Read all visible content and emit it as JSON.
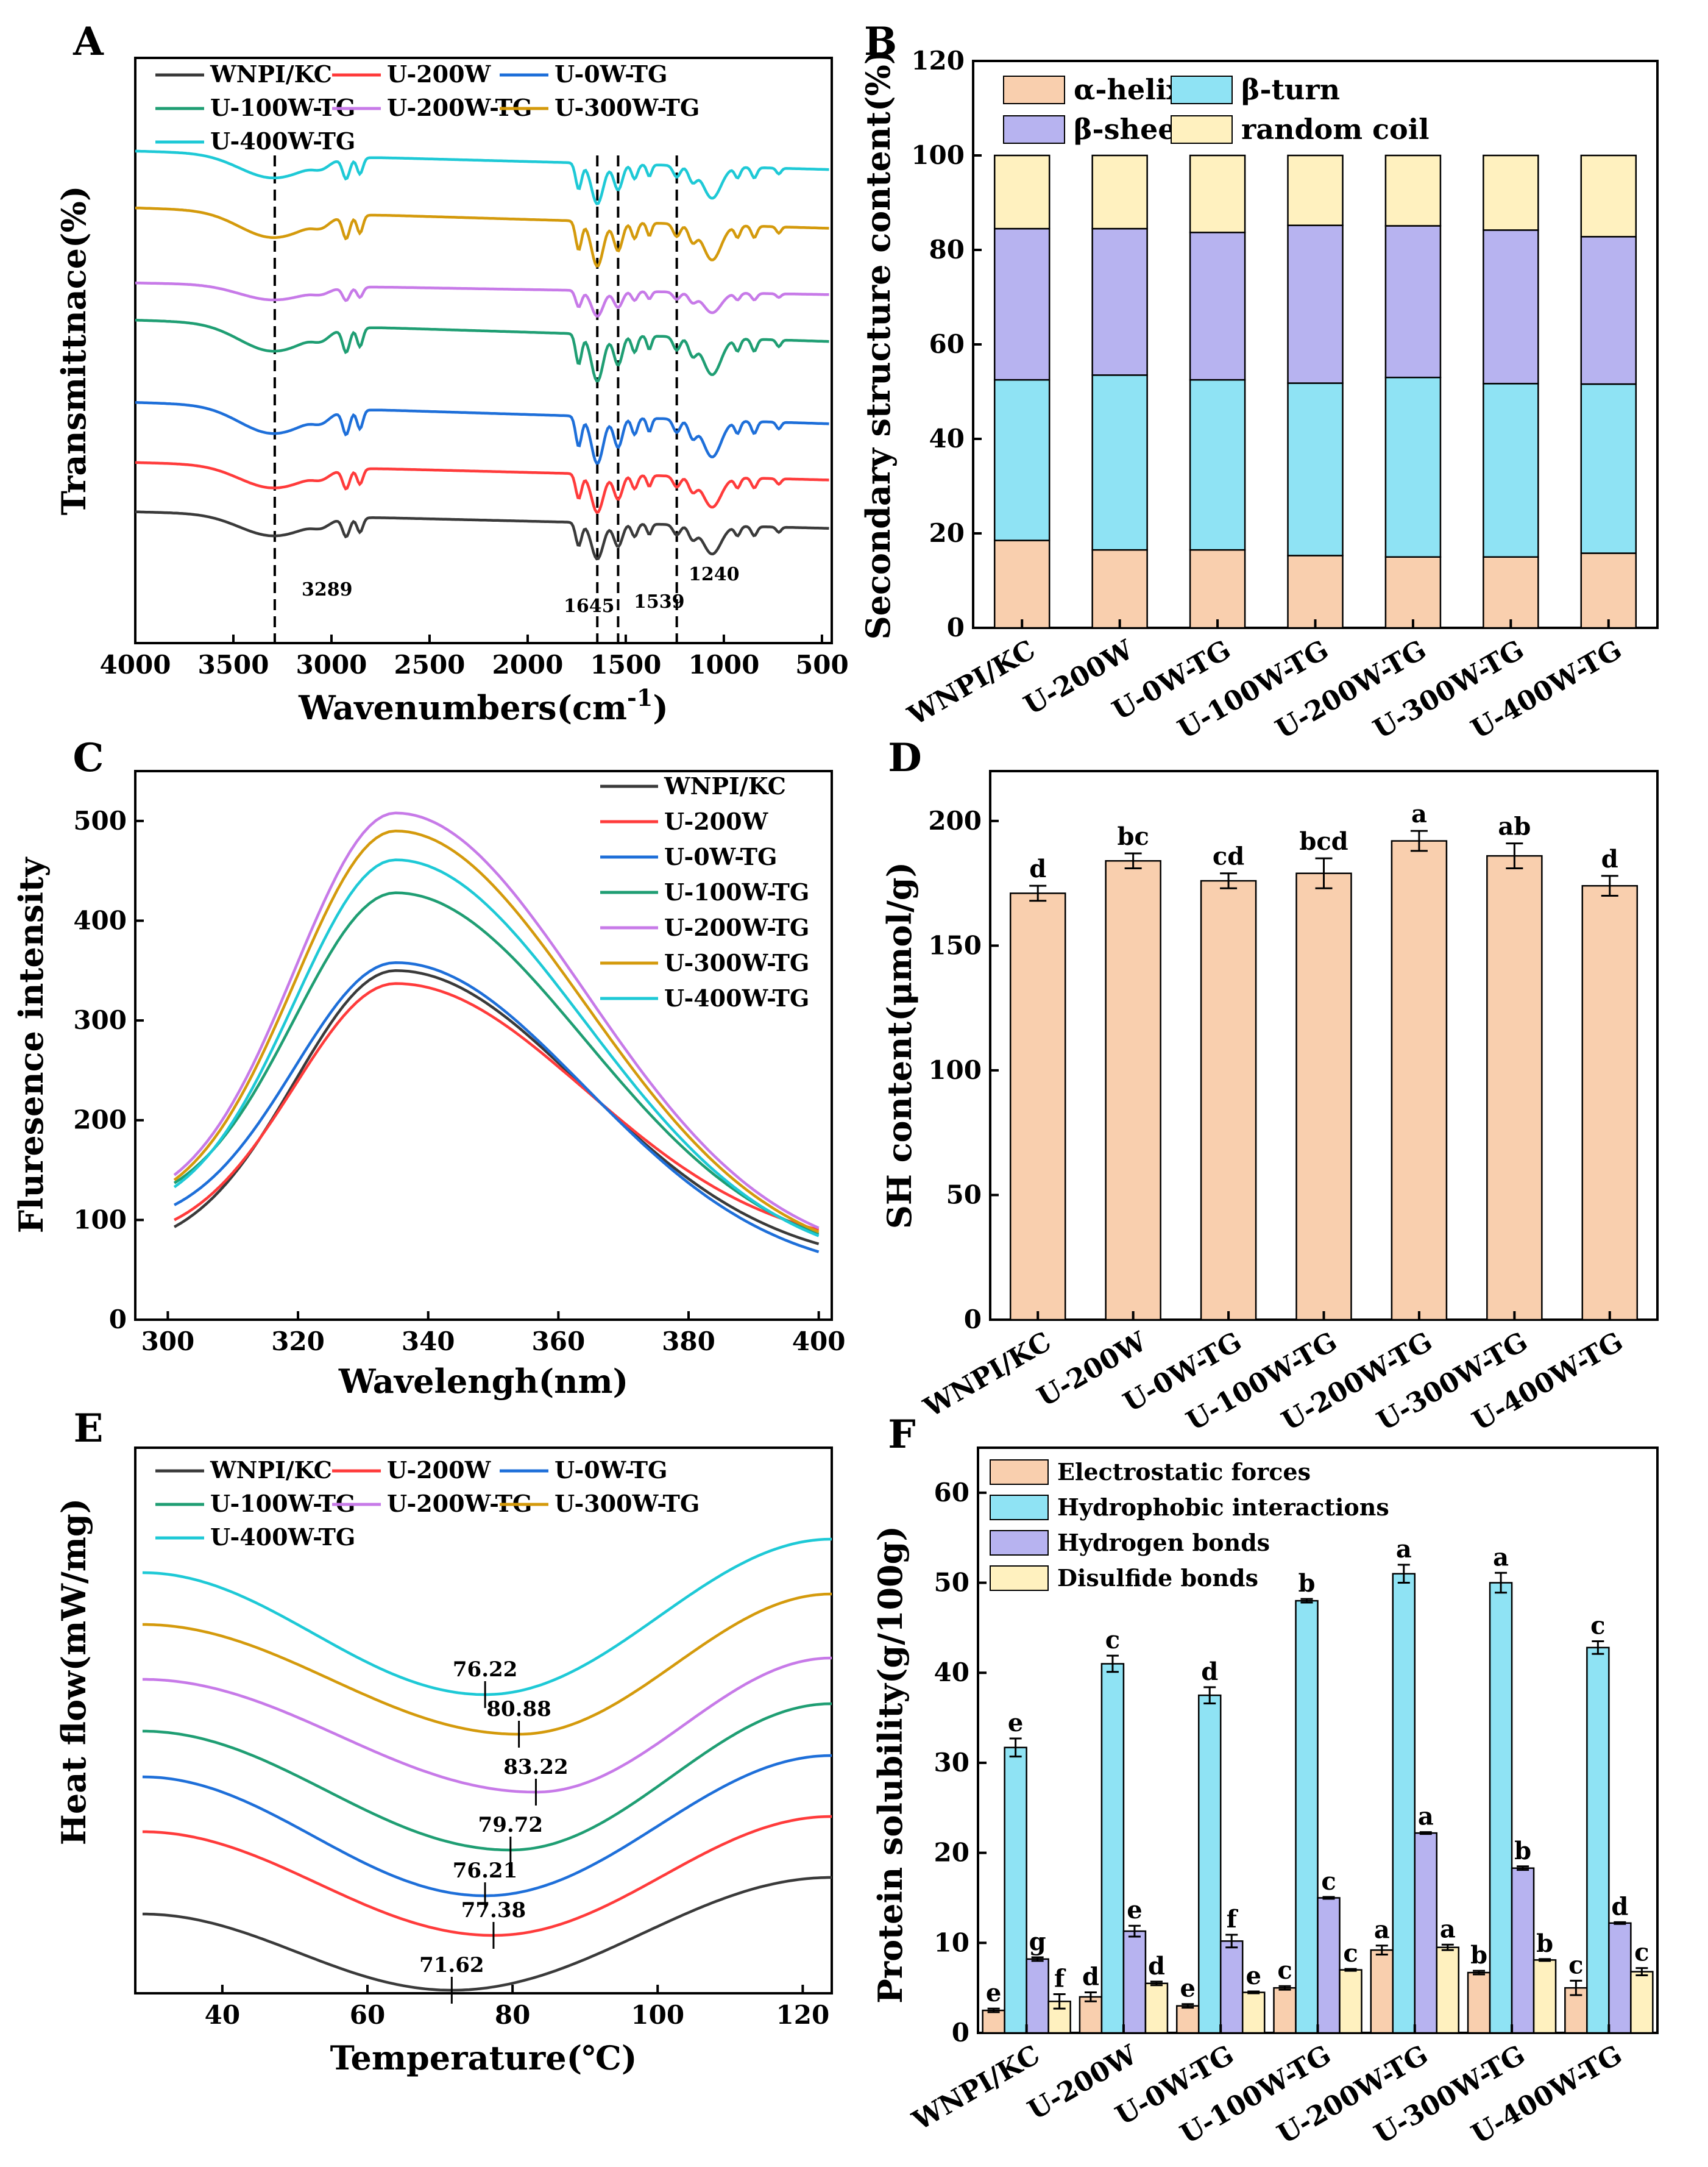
{
  "colors": {
    "black": "#3a3a3a",
    "red": "#ff3b3b",
    "blue": "#1e6fd9",
    "green": "#1f9e73",
    "violet": "#c77ae8",
    "orange": "#d49a0c",
    "cyan": "#1ec9d6",
    "peach": "#f9cfae",
    "skyblue": "#8fe3f4",
    "lavender": "#b7b3f0",
    "cream": "#fff1bf"
  },
  "chart_data": [
    {
      "panel": "A",
      "type": "line",
      "title": "",
      "xlabel": "Wavenumbers(cm-1)",
      "xlabel_main": "Wavenumbers(cm",
      "xlabel_sup": "-1",
      "xlabel_close": ")",
      "ylabel": "Transmittnace(%)",
      "xlim": [
        4000,
        450
      ],
      "x_ticks": [
        4000,
        3500,
        3000,
        2500,
        2000,
        1500,
        1000,
        500
      ],
      "y_ticks_shown": false,
      "series": [
        {
          "name": "WNPI/KC",
          "color": "black"
        },
        {
          "name": "U-200W",
          "color": "red"
        },
        {
          "name": "U-0W-TG",
          "color": "blue"
        },
        {
          "name": "U-100W-TG",
          "color": "green"
        },
        {
          "name": "U-200W-TG",
          "color": "violet"
        },
        {
          "name": "U-300W-TG",
          "color": "orange"
        },
        {
          "name": "U-400W-TG",
          "color": "cyan"
        }
      ],
      "reference_lines": [
        3289,
        1645,
        1539,
        1240
      ],
      "annotations": [
        "3289",
        "1645",
        "1539",
        "1240"
      ]
    },
    {
      "panel": "B",
      "type": "bar",
      "stacked": true,
      "xlabel": "",
      "ylabel": "Secondary structure content(%)",
      "ylim": [
        0,
        120
      ],
      "y_ticks": [
        0,
        20,
        40,
        60,
        80,
        100,
        120
      ],
      "categories": [
        "WNPI/KC",
        "U-200W",
        "U-0W-TG",
        "U-100W-TG",
        "U-200W-TG",
        "U-300W-TG",
        "U-400W-TG"
      ],
      "series": [
        {
          "name": "α-helix",
          "color": "peach",
          "values": [
            18.5,
            16.5,
            16.5,
            15.3,
            15.0,
            15.0,
            15.8
          ]
        },
        {
          "name": "β-turn",
          "color": "skyblue",
          "values": [
            34.0,
            37.0,
            36.0,
            36.5,
            38.0,
            36.7,
            35.8
          ]
        },
        {
          "name": "β-sheet",
          "color": "lavender",
          "values": [
            32.0,
            31.0,
            31.2,
            33.4,
            32.1,
            32.5,
            31.2
          ]
        },
        {
          "name": "random coil",
          "color": "cream",
          "values": [
            15.5,
            15.5,
            16.3,
            14.8,
            14.9,
            15.8,
            17.2
          ]
        }
      ]
    },
    {
      "panel": "C",
      "type": "line",
      "xlabel": "Wavelengh(nm)",
      "ylabel": "Fluresence intensity",
      "xlim": [
        295,
        402
      ],
      "ylim": [
        0,
        550
      ],
      "x_ticks": [
        300,
        320,
        340,
        360,
        380,
        400
      ],
      "y_ticks": [
        0,
        100,
        200,
        300,
        400,
        500
      ],
      "series": [
        {
          "name": "WNPI/KC",
          "color": "black",
          "peak": 350,
          "start": 93,
          "end": 76
        },
        {
          "name": "U-200W",
          "color": "red",
          "peak": 337,
          "start": 100,
          "end": 90
        },
        {
          "name": "U-0W-TG",
          "color": "blue",
          "peak": 358,
          "start": 115,
          "end": 68
        },
        {
          "name": "U-100W-TG",
          "color": "green",
          "peak": 428,
          "start": 137,
          "end": 86
        },
        {
          "name": "U-200W-TG",
          "color": "violet",
          "peak": 508,
          "start": 145,
          "end": 92
        },
        {
          "name": "U-300W-TG",
          "color": "orange",
          "peak": 490,
          "start": 140,
          "end": 88
        },
        {
          "name": "U-400W-TG",
          "color": "cyan",
          "peak": 461,
          "start": 133,
          "end": 84
        }
      ]
    },
    {
      "panel": "D",
      "type": "bar",
      "xlabel": "",
      "ylabel": "SH content(μmol/g)",
      "ylim": [
        0,
        220
      ],
      "y_ticks": [
        0,
        50,
        100,
        150,
        200
      ],
      "categories": [
        "WNPI/KC",
        "U-200W",
        "U-0W-TG",
        "U-100W-TG",
        "U-200W-TG",
        "U-300W-TG",
        "U-400W-TG"
      ],
      "values": [
        171,
        184,
        176,
        179,
        192,
        186,
        174
      ],
      "errors": [
        3,
        3,
        3,
        6,
        4,
        5,
        4
      ],
      "letters": [
        "d",
        "bc",
        "cd",
        "bcd",
        "a",
        "ab",
        "d"
      ],
      "color": "peach"
    },
    {
      "panel": "E",
      "type": "line",
      "xlabel": "Temperature(℃)",
      "ylabel": "Heat flow(mW/mg)",
      "xlim": [
        28,
        124
      ],
      "x_ticks": [
        40,
        60,
        80,
        100,
        120
      ],
      "y_ticks_shown": false,
      "series": [
        {
          "name": "WNPI/KC",
          "color": "black",
          "peak_temp": 71.62,
          "label": "71.62"
        },
        {
          "name": "U-200W",
          "color": "red",
          "peak_temp": 77.38,
          "label": "77.38"
        },
        {
          "name": "U-0W-TG",
          "color": "blue",
          "peak_temp": 76.21,
          "label": "76.21"
        },
        {
          "name": "U-100W-TG",
          "color": "green",
          "peak_temp": 79.72,
          "label": "79.72"
        },
        {
          "name": "U-200W-TG",
          "color": "violet",
          "peak_temp": 83.22,
          "label": "83.22"
        },
        {
          "name": "U-300W-TG",
          "color": "orange",
          "peak_temp": 80.88,
          "label": "80.88"
        },
        {
          "name": "U-400W-TG",
          "color": "cyan",
          "peak_temp": 76.22,
          "label": "76.22"
        }
      ]
    },
    {
      "panel": "F",
      "type": "bar",
      "grouped": true,
      "xlabel": "",
      "ylabel": "Protein solubility(g/100g)",
      "ylim": [
        0,
        65
      ],
      "y_ticks": [
        0,
        10,
        20,
        30,
        40,
        50,
        60
      ],
      "categories": [
        "WNPI/KC",
        "U-200W",
        "U-0W-TG",
        "U-100W-TG",
        "U-200W-TG",
        "U-300W-TG",
        "U-400W-TG"
      ],
      "series": [
        {
          "name": "Electrostatic forces",
          "color": "peach",
          "values": [
            2.5,
            4.0,
            3.0,
            5.0,
            9.2,
            6.7,
            5.0
          ],
          "errors": [
            0.2,
            0.5,
            0.2,
            0.2,
            0.5,
            0.2,
            0.8
          ],
          "letters": [
            "e",
            "d",
            "e",
            "c",
            "a",
            "b",
            "c"
          ]
        },
        {
          "name": "Hydrophobic interactions",
          "color": "skyblue",
          "values": [
            31.7,
            41.0,
            37.5,
            48.0,
            51.0,
            50.0,
            42.8
          ],
          "errors": [
            1.0,
            0.9,
            0.9,
            0.2,
            1.0,
            1.1,
            0.7
          ],
          "letters": [
            "e",
            "c",
            "d",
            "b",
            "a",
            "a",
            "c"
          ]
        },
        {
          "name": "Hydrogen bonds",
          "color": "lavender",
          "values": [
            8.2,
            11.3,
            10.2,
            15.0,
            22.2,
            18.3,
            12.2
          ],
          "errors": [
            0.2,
            0.6,
            0.7,
            0.1,
            0.1,
            0.2,
            0.1
          ],
          "letters": [
            "g",
            "e",
            "f",
            "c",
            "a",
            "b",
            "d"
          ]
        },
        {
          "name": "Disulfide bonds",
          "color": "cream",
          "values": [
            3.5,
            5.5,
            4.5,
            7.0,
            9.5,
            8.1,
            6.8
          ],
          "errors": [
            0.8,
            0.2,
            0.1,
            0.1,
            0.3,
            0.1,
            0.4
          ],
          "letters": [
            "f",
            "d",
            "e",
            "c",
            "a",
            "b",
            "c"
          ]
        }
      ]
    }
  ]
}
